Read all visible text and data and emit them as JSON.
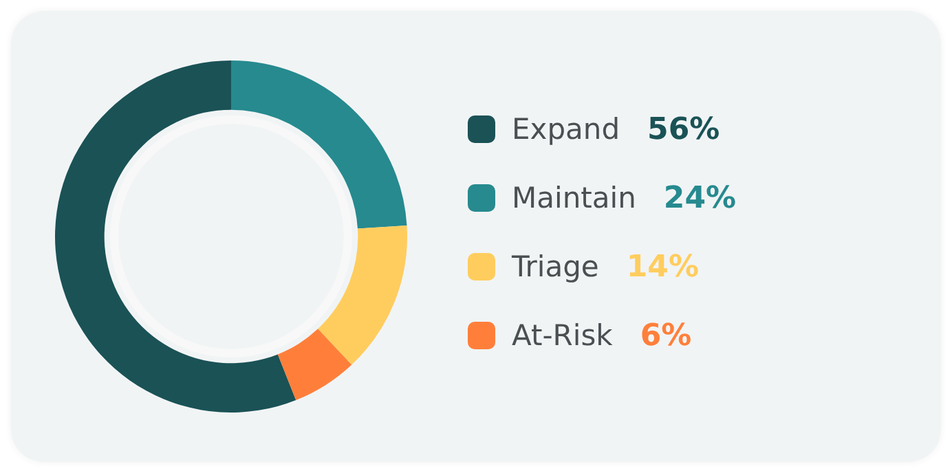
{
  "chart_data": {
    "type": "donut",
    "categories": [
      "Expand",
      "Maintain",
      "Triage",
      "At-Risk"
    ],
    "values": [
      56,
      24,
      14,
      6
    ],
    "colors": [
      "#1a5256",
      "#268a8f",
      "#ffcd5e",
      "#ff7f3a"
    ],
    "value_labels": [
      "56%",
      "24%",
      "14%",
      "6%"
    ],
    "legend": "right"
  }
}
